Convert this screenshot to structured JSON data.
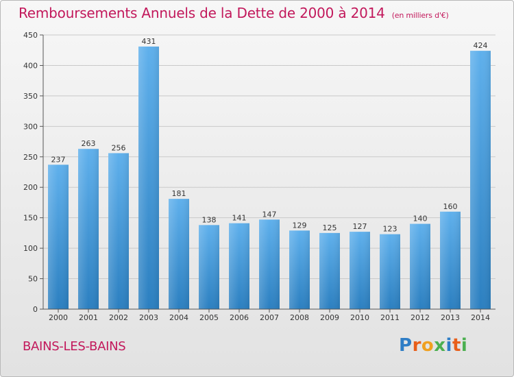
{
  "title": "Remboursements Annuels de la Dette de 2000 à 2014",
  "subtitle": "(en milliers d'€)",
  "commune": "BAINS-LES-BAINS",
  "logo": {
    "text": "Proxiti",
    "letters": [
      {
        "ch": "P",
        "color": "#2e7dc6"
      },
      {
        "ch": "r",
        "color": "#e85f1b"
      },
      {
        "ch": "o",
        "color": "#f0a020"
      },
      {
        "ch": "x",
        "color": "#4caf50"
      },
      {
        "ch": "i",
        "color": "#2e7dc6"
      },
      {
        "ch": "t",
        "color": "#e85f1b"
      },
      {
        "ch": "i",
        "color": "#4caf50"
      }
    ]
  },
  "colors": {
    "title": "#c2185b",
    "bar_top": "#5fb0ec",
    "bar_bottom": "#2b7fc0",
    "grid": "#c9c9c9"
  },
  "chart_data": {
    "type": "bar",
    "categories": [
      "2000",
      "2001",
      "2002",
      "2003",
      "2004",
      "2005",
      "2006",
      "2007",
      "2008",
      "2009",
      "2010",
      "2011",
      "2012",
      "2013",
      "2014"
    ],
    "values": [
      237,
      263,
      256,
      431,
      181,
      138,
      141,
      147,
      129,
      125,
      127,
      123,
      140,
      160,
      424
    ],
    "ylim": [
      0,
      450
    ],
    "yticks": [
      0,
      50,
      100,
      150,
      200,
      250,
      300,
      350,
      400,
      450
    ],
    "grid": true
  }
}
